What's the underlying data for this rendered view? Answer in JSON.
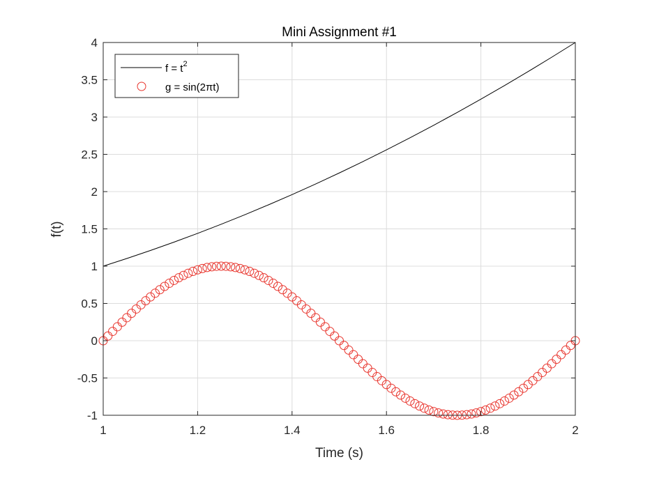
{
  "chart_data": {
    "type": "line",
    "title": "Mini Assignment #1",
    "xlabel": "Time (s)",
    "ylabel": "f(t)",
    "xlim": [
      1,
      2
    ],
    "ylim": [
      -1,
      4
    ],
    "xticks": [
      1,
      1.2,
      1.4,
      1.6,
      1.8,
      2
    ],
    "xtick_labels": [
      "1",
      "1.2",
      "1.4",
      "1.6",
      "1.8",
      "2"
    ],
    "yticks": [
      -1,
      -0.5,
      0,
      0.5,
      1,
      1.5,
      2,
      2.5,
      3,
      3.5,
      4
    ],
    "ytick_labels": [
      "-1",
      "-0.5",
      "0",
      "0.5",
      "1",
      "1.5",
      "2",
      "2.5",
      "3",
      "3.5",
      "4"
    ],
    "grid": true,
    "legend_position": "top-left",
    "series": [
      {
        "name": "f = t",
        "name_superscript": "2",
        "style": "line",
        "color": "#000000",
        "x": [
          1.0,
          1.05,
          1.1,
          1.15,
          1.2,
          1.25,
          1.3,
          1.35,
          1.4,
          1.45,
          1.5,
          1.55,
          1.6,
          1.65,
          1.7,
          1.75,
          1.8,
          1.85,
          1.9,
          1.95,
          2.0
        ],
        "y": [
          1.0,
          1.1025,
          1.21,
          1.3225,
          1.44,
          1.5625,
          1.69,
          1.8225,
          1.96,
          2.1025,
          2.25,
          2.4025,
          2.56,
          2.7225,
          2.89,
          3.0625,
          3.24,
          3.4225,
          3.61,
          3.8025,
          4.0
        ]
      },
      {
        "name": "g = sin(2πt)",
        "style": "circle-markers",
        "color": "#e8322a",
        "x": [
          1.0,
          1.01,
          1.02,
          1.03,
          1.04,
          1.05,
          1.06,
          1.07,
          1.08,
          1.09,
          1.1,
          1.11,
          1.12,
          1.13,
          1.14,
          1.15,
          1.16,
          1.17,
          1.18,
          1.19,
          1.2,
          1.21,
          1.22,
          1.23,
          1.24,
          1.25,
          1.26,
          1.27,
          1.28,
          1.29,
          1.3,
          1.31,
          1.32,
          1.33,
          1.34,
          1.35,
          1.36,
          1.37,
          1.38,
          1.39,
          1.4,
          1.41,
          1.42,
          1.43,
          1.44,
          1.45,
          1.46,
          1.47,
          1.48,
          1.49,
          1.5,
          1.51,
          1.52,
          1.53,
          1.54,
          1.55,
          1.56,
          1.57,
          1.58,
          1.59,
          1.6,
          1.61,
          1.62,
          1.63,
          1.64,
          1.65,
          1.66,
          1.67,
          1.68,
          1.69,
          1.7,
          1.71,
          1.72,
          1.73,
          1.74,
          1.75,
          1.76,
          1.77,
          1.78,
          1.79,
          1.8,
          1.81,
          1.82,
          1.83,
          1.84,
          1.85,
          1.86,
          1.87,
          1.88,
          1.89,
          1.9,
          1.91,
          1.92,
          1.93,
          1.94,
          1.95,
          1.96,
          1.97,
          1.98,
          1.99,
          2.0
        ],
        "y": [
          0.0,
          0.0628,
          0.1253,
          0.1874,
          0.2487,
          0.309,
          0.3681,
          0.4258,
          0.4818,
          0.5358,
          0.5878,
          0.6374,
          0.6845,
          0.729,
          0.7705,
          0.809,
          0.8443,
          0.8763,
          0.9048,
          0.9298,
          0.9511,
          0.9686,
          0.9823,
          0.9921,
          0.998,
          1.0,
          0.998,
          0.9921,
          0.9823,
          0.9686,
          0.9511,
          0.9298,
          0.9048,
          0.8763,
          0.8443,
          0.809,
          0.7705,
          0.729,
          0.6845,
          0.6374,
          0.5878,
          0.5358,
          0.4818,
          0.4258,
          0.3681,
          0.309,
          0.2487,
          0.1874,
          0.1253,
          0.0628,
          0.0,
          -0.0628,
          -0.1253,
          -0.1874,
          -0.2487,
          -0.309,
          -0.3681,
          -0.4258,
          -0.4818,
          -0.5358,
          -0.5878,
          -0.6374,
          -0.6845,
          -0.729,
          -0.7705,
          -0.809,
          -0.8443,
          -0.8763,
          -0.9048,
          -0.9298,
          -0.9511,
          -0.9686,
          -0.9823,
          -0.9921,
          -0.998,
          -1.0,
          -0.998,
          -0.9921,
          -0.9823,
          -0.9686,
          -0.9511,
          -0.9298,
          -0.9048,
          -0.8763,
          -0.8443,
          -0.809,
          -0.7705,
          -0.729,
          -0.6845,
          -0.6374,
          -0.5878,
          -0.5358,
          -0.4818,
          -0.4258,
          -0.3681,
          -0.309,
          -0.2487,
          -0.1874,
          -0.1253,
          -0.0628,
          0.0
        ]
      }
    ]
  }
}
